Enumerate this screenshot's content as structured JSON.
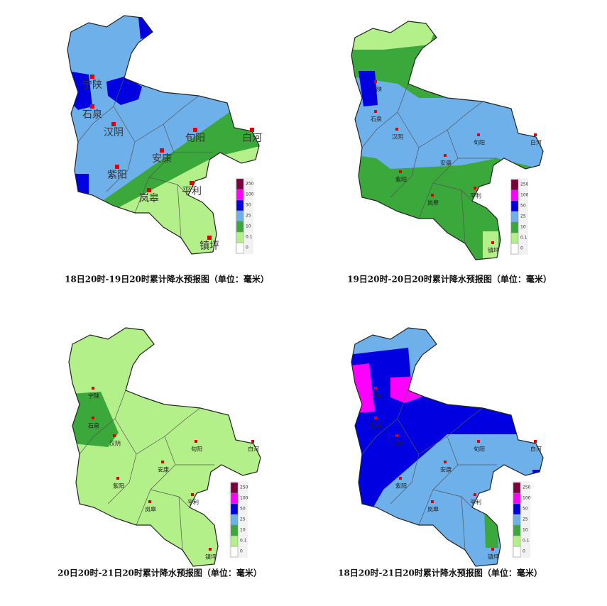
{
  "panels": [
    {
      "caption": "18日20时-19日20时累计降水预报图（单位：毫米）"
    },
    {
      "caption": "19日20时-20日20时累计降水预报图（单位：毫米）"
    },
    {
      "caption": "20日20时-21日20时累计降水预报图（单位：毫米）"
    },
    {
      "caption": "18日20时-21日20时累计降水预报图（单位：毫米）"
    }
  ],
  "cities": [
    "宁陕",
    "石泉",
    "汉阴",
    "旬阳",
    "白河",
    "安康",
    "紫阳",
    "平利",
    "岚皋",
    "镇坪"
  ],
  "legend": {
    "labels": [
      "250",
      "100",
      "50",
      "25",
      "10",
      "0.1",
      "0"
    ],
    "colors": [
      "#7a0040",
      "#ff00ff",
      "#0000e0",
      "#6eb0ea",
      "#3aa83a",
      "#b4f08a",
      "#ffffff"
    ]
  }
}
